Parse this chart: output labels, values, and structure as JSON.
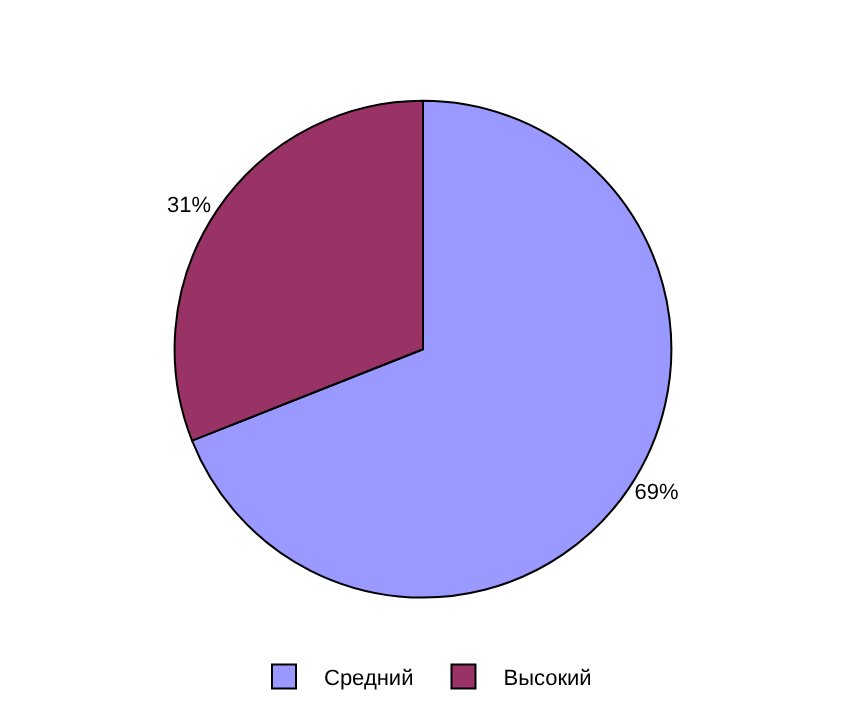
{
  "chart_data": {
    "type": "pie",
    "categories": [
      "Средний",
      "Высокий"
    ],
    "values": [
      69,
      31
    ],
    "colors": [
      "#9999ff",
      "#993366"
    ],
    "value_labels": [
      "69%",
      "31%"
    ],
    "legend": "bottom"
  }
}
